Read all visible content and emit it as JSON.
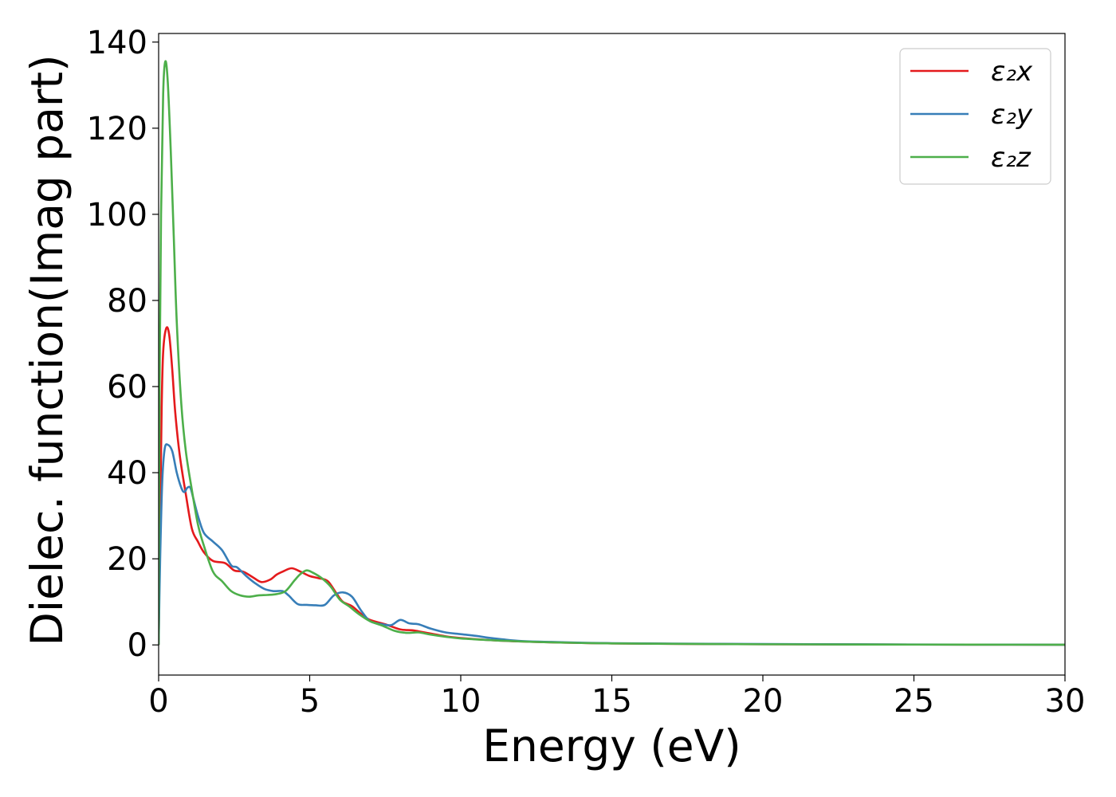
{
  "chart_data": {
    "type": "line",
    "title": "",
    "xlabel": "Energy (eV)",
    "ylabel": "Dielec. function(Imag part)",
    "xlim": [
      0,
      30
    ],
    "ylim": [
      -7,
      142
    ],
    "xticks": [
      0,
      5,
      10,
      15,
      20,
      25,
      30
    ],
    "yticks": [
      0,
      20,
      40,
      60,
      80,
      100,
      120,
      140
    ],
    "grid": false,
    "legend_position": "top-right",
    "series": [
      {
        "name": "ε₂x",
        "color": "#e41a1c",
        "points": [
          [
            0,
            0
          ],
          [
            0.05,
            30
          ],
          [
            0.1,
            55
          ],
          [
            0.15,
            68
          ],
          [
            0.25,
            73.5
          ],
          [
            0.35,
            72
          ],
          [
            0.45,
            64
          ],
          [
            0.55,
            54
          ],
          [
            0.7,
            44
          ],
          [
            0.9,
            35
          ],
          [
            1.1,
            27
          ],
          [
            1.3,
            24
          ],
          [
            1.5,
            21.5
          ],
          [
            1.8,
            19.5
          ],
          [
            2.2,
            19
          ],
          [
            2.5,
            17.3
          ],
          [
            2.8,
            17
          ],
          [
            3.1,
            15.8
          ],
          [
            3.4,
            14.6
          ],
          [
            3.7,
            15.2
          ],
          [
            3.9,
            16.3
          ],
          [
            4.1,
            17
          ],
          [
            4.4,
            17.8
          ],
          [
            4.7,
            17
          ],
          [
            5.0,
            16
          ],
          [
            5.3,
            15.5
          ],
          [
            5.6,
            14.8
          ],
          [
            5.9,
            11.8
          ],
          [
            6.1,
            10
          ],
          [
            6.4,
            9
          ],
          [
            6.7,
            7.2
          ],
          [
            7.0,
            5.8
          ],
          [
            7.5,
            4.8
          ],
          [
            8.0,
            3.6
          ],
          [
            8.4,
            3.4
          ],
          [
            8.8,
            2.9
          ],
          [
            9.5,
            2.0
          ],
          [
            10,
            1.6
          ],
          [
            11,
            1.1
          ],
          [
            12,
            0.8
          ],
          [
            13,
            0.6
          ],
          [
            14,
            0.45
          ],
          [
            15,
            0.35
          ],
          [
            17,
            0.25
          ],
          [
            20,
            0.15
          ],
          [
            25,
            0.08
          ],
          [
            30,
            0.05
          ]
        ]
      },
      {
        "name": "ε₂y",
        "color": "#377eb8",
        "points": [
          [
            0,
            0
          ],
          [
            0.05,
            20
          ],
          [
            0.12,
            38
          ],
          [
            0.2,
            45.5
          ],
          [
            0.3,
            46.5
          ],
          [
            0.45,
            45
          ],
          [
            0.6,
            40
          ],
          [
            0.75,
            36.5
          ],
          [
            0.85,
            35.5
          ],
          [
            0.95,
            36.5
          ],
          [
            1.05,
            36.5
          ],
          [
            1.15,
            34
          ],
          [
            1.3,
            30
          ],
          [
            1.5,
            26
          ],
          [
            1.8,
            24
          ],
          [
            2.1,
            22
          ],
          [
            2.4,
            18.5
          ],
          [
            2.6,
            18
          ],
          [
            2.9,
            16
          ],
          [
            3.2,
            14.3
          ],
          [
            3.5,
            13
          ],
          [
            3.8,
            12.5
          ],
          [
            4.1,
            12.5
          ],
          [
            4.3,
            11.5
          ],
          [
            4.6,
            9.5
          ],
          [
            4.9,
            9.3
          ],
          [
            5.2,
            9.2
          ],
          [
            5.5,
            9.3
          ],
          [
            5.8,
            11.5
          ],
          [
            6.1,
            12.2
          ],
          [
            6.4,
            11.2
          ],
          [
            6.7,
            8
          ],
          [
            7.0,
            5.5
          ],
          [
            7.4,
            4.8
          ],
          [
            7.7,
            4.6
          ],
          [
            8.0,
            5.8
          ],
          [
            8.3,
            5
          ],
          [
            8.6,
            4.8
          ],
          [
            9.0,
            3.8
          ],
          [
            9.5,
            2.9
          ],
          [
            10,
            2.5
          ],
          [
            10.5,
            2.1
          ],
          [
            11,
            1.6
          ],
          [
            12,
            0.9
          ],
          [
            13,
            0.7
          ],
          [
            14,
            0.5
          ],
          [
            15,
            0.4
          ],
          [
            17,
            0.3
          ],
          [
            20,
            0.2
          ],
          [
            25,
            0.1
          ],
          [
            30,
            0.05
          ]
        ]
      },
      {
        "name": "ε₂z",
        "color": "#4daf4a",
        "points": [
          [
            0,
            0
          ],
          [
            0.03,
            60
          ],
          [
            0.08,
            100
          ],
          [
            0.15,
            128
          ],
          [
            0.22,
            135.5
          ],
          [
            0.3,
            131
          ],
          [
            0.4,
            115
          ],
          [
            0.5,
            95
          ],
          [
            0.6,
            75
          ],
          [
            0.75,
            56
          ],
          [
            0.9,
            45
          ],
          [
            1.1,
            36
          ],
          [
            1.3,
            28
          ],
          [
            1.5,
            23
          ],
          [
            1.8,
            17
          ],
          [
            2.1,
            14.8
          ],
          [
            2.4,
            12.5
          ],
          [
            2.7,
            11.5
          ],
          [
            3.0,
            11.2
          ],
          [
            3.3,
            11.5
          ],
          [
            3.6,
            11.6
          ],
          [
            3.9,
            11.8
          ],
          [
            4.2,
            12.5
          ],
          [
            4.5,
            15
          ],
          [
            4.7,
            16.5
          ],
          [
            4.9,
            17.3
          ],
          [
            5.1,
            16.8
          ],
          [
            5.4,
            15.5
          ],
          [
            5.7,
            13.5
          ],
          [
            6.0,
            10.5
          ],
          [
            6.3,
            9
          ],
          [
            6.6,
            7.3
          ],
          [
            7.0,
            5.5
          ],
          [
            7.4,
            4.5
          ],
          [
            7.8,
            3.3
          ],
          [
            8.2,
            2.8
          ],
          [
            8.6,
            2.9
          ],
          [
            9.0,
            2.4
          ],
          [
            9.5,
            1.9
          ],
          [
            10,
            1.5
          ],
          [
            11,
            1.1
          ],
          [
            12,
            0.8
          ],
          [
            13,
            0.6
          ],
          [
            14,
            0.45
          ],
          [
            15,
            0.35
          ],
          [
            17,
            0.25
          ],
          [
            20,
            0.15
          ],
          [
            25,
            0.08
          ],
          [
            30,
            0.05
          ]
        ]
      }
    ]
  }
}
